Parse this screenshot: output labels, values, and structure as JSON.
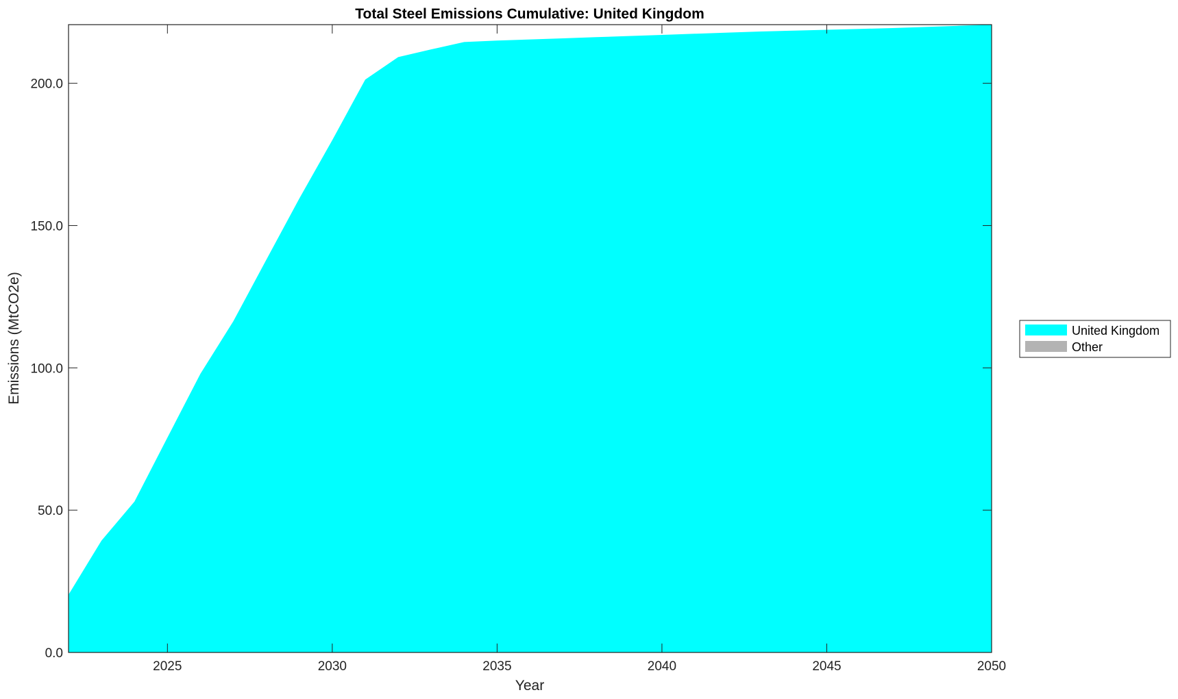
{
  "chart_data": {
    "type": "area",
    "title": "Total Steel Emissions Cumulative: United Kingdom",
    "xlabel": "Year",
    "ylabel": "Emissions (MtCO2e)",
    "xlim": [
      2022,
      2050
    ],
    "ylim": [
      0,
      220.6
    ],
    "xticks": [
      "2025",
      "2030",
      "2035",
      "2040",
      "2045",
      "2050"
    ],
    "yticks": [
      "0.0",
      "50.0",
      "100.0",
      "150.0",
      "200.0"
    ],
    "grid": false,
    "legend_position": "right",
    "x": [
      2022,
      2023,
      2024,
      2025,
      2026,
      2027,
      2028,
      2029,
      2030,
      2031,
      2032,
      2033,
      2034,
      2035,
      2036,
      2037,
      2038,
      2039,
      2040,
      2041,
      2042,
      2043,
      2044,
      2045,
      2046,
      2047,
      2048,
      2049,
      2050
    ],
    "series": [
      {
        "name": "United Kingdom",
        "color": "#00ffff",
        "values": [
          20.3,
          39.3,
          53.0,
          75.5,
          97.9,
          116.4,
          138.0,
          159.5,
          180.0,
          201.3,
          209.2,
          211.9,
          214.5,
          215.0,
          215.4,
          215.8,
          216.2,
          216.6,
          217.0,
          217.4,
          217.8,
          218.2,
          218.5,
          218.8,
          219.1,
          219.4,
          219.8,
          220.2,
          220.6
        ]
      },
      {
        "name": "Other",
        "color": "#b3b3b3",
        "values": [
          0,
          0,
          0,
          0,
          0,
          0,
          0,
          0,
          0,
          0,
          0,
          0,
          0,
          0,
          0,
          0,
          0,
          0,
          0,
          0,
          0,
          0,
          0,
          0,
          0,
          0,
          0,
          0,
          0
        ]
      }
    ]
  }
}
